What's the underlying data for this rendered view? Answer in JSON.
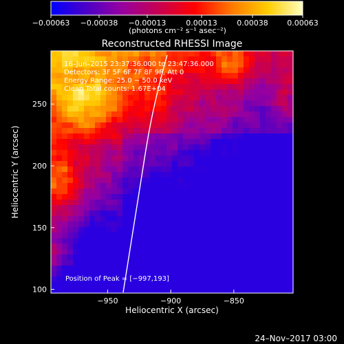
{
  "chart_data": {
    "type": "heatmap",
    "title": "Reconstructed RHESSI Image",
    "xlabel": "Heliocentric X (arcsec)",
    "ylabel": "Heliocentric Y (arcsec)",
    "xlim": [
      -995,
      -803
    ],
    "ylim": [
      97,
      293
    ],
    "xticks": [
      -950,
      -900,
      -850
    ],
    "yticks": [
      100,
      150,
      200,
      250
    ],
    "xtick_labels": [
      "−950",
      "−900",
      "−850"
    ],
    "ytick_labels": [
      "100",
      "150",
      "200",
      "250"
    ],
    "colorbar": {
      "units": "(photons cm⁻² s⁻¹ asec⁻²)",
      "ticks": [
        -0.00063,
        -0.00038,
        -0.00013,
        0.00013,
        0.00038,
        0.00063
      ],
      "tick_labels": [
        "−0.00063",
        "−0.00038",
        "−0.00013",
        "0.00013",
        "0.00038",
        "0.00063"
      ],
      "colors": [
        "#0000ff",
        "#4b00c8",
        "#9600a0",
        "#c80050",
        "#ff0000",
        "#ff7a00",
        "#ffcc00",
        "#ffffc0"
      ]
    },
    "annotations": {
      "time_range": "16–Jun–2015 23:37:36.000 to 23:47:36.000",
      "detectors": "Detectors: 3F 5F 6F 7F 8F 9F, Att 0",
      "energy_range": "Energy Range: 25.0 − 50.0 keV",
      "method_and_counts": "Clean    Total counts: 1.67E+04",
      "position_of_peak": "Position of Peak = [−997,193]",
      "timestamp": "24–Nov–2017 03:00"
    },
    "grid": false,
    "limb_line": true
  }
}
